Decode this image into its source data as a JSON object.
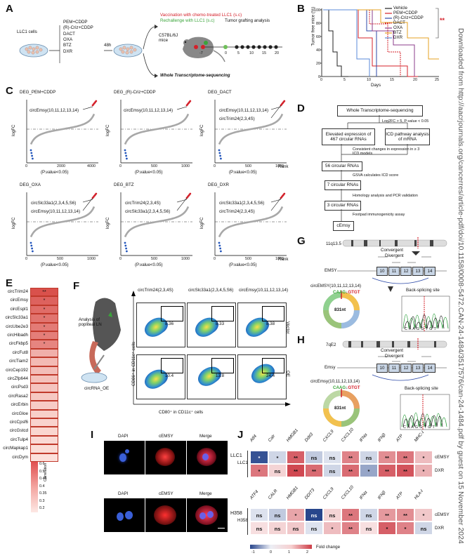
{
  "panels": {
    "A": "A",
    "B": "B",
    "C": "C",
    "D": "D",
    "E": "E",
    "F": "F",
    "G": "G",
    "H": "H",
    "I": "I",
    "J": "J"
  },
  "side_note": "Downloaded from http://aacrjournals.org/cancerres/article-pdf/doi/10.1158/0008-5472.CAN-24-1484/3517576/can-24-1484.pdf by guest on 15 November 2024",
  "colors": {
    "red": "#d4202a",
    "green": "#3aa43a",
    "blue": "#2255bb",
    "gray": "#9a9a9a"
  },
  "panelA": {
    "cells_label": "LLC1 cells",
    "drugs": [
      "PEM+CDDP",
      "(R)-Criz+CDDP",
      "DACT",
      "OXA",
      "BTZ",
      "DXR"
    ],
    "time": "48h",
    "vaccination": "Vaccination with chemo-treated LLC1 (s.c)",
    "rechallenge": "Rechallenge with LLC1 (s.c)",
    "grafting": "Tumor grafting analysis",
    "mice": "C57BL/6J mice",
    "wts": "Whole Transcriptome-sequencing",
    "timeline_ticks": [
      "-7",
      "0",
      "5",
      "10",
      "15",
      "20"
    ]
  },
  "panelB": {
    "legend": [
      "Vehicle",
      "PEM+CDDP",
      "(R)-Criz+CDDP",
      "DACT",
      "OXA",
      "BTZ",
      "DXR"
    ],
    "ylabel": "Tumor free mice (%)",
    "xlabel": "Days",
    "yticks": [
      "0",
      "20",
      "40",
      "60",
      "80",
      "100"
    ],
    "xticks": [
      "0",
      "5",
      "10",
      "15",
      "20",
      "25"
    ],
    "sig": "**"
  },
  "panelC": {
    "plots": [
      {
        "title": "DEG_PEM+CDDP",
        "labels": [
          "circEmsy(10,11,12,13,14)"
        ],
        "xticks": [
          "0",
          "2000",
          "4000"
        ]
      },
      {
        "title": "DEG_(R)-Criz+CDDP",
        "labels": [
          "circEmsy(10,11,12,13,14)"
        ],
        "xticks": [
          "0",
          "500",
          "1000"
        ]
      },
      {
        "title": "DEG_DACT",
        "labels": [
          "circEmsy(10,11,12,13,14)",
          "circTrim24(2,3,4S)"
        ],
        "xticks": [
          "0",
          "500",
          "1000"
        ]
      },
      {
        "title": "DEG_OXA",
        "labels": [
          "circSlc33a1(2,3,4,5,S6)",
          "circEmsy(10,11,12,13,14)"
        ],
        "xticks": [
          "0",
          "500",
          "1000"
        ]
      },
      {
        "title": "DEG_BTZ",
        "labels": [
          "circTrim24(2,3,4S)",
          "circSlc33a1(2,3,4,5,S6)"
        ],
        "xticks": [
          "0",
          "500",
          "1000"
        ]
      },
      {
        "title": "DEG_DXR",
        "labels": [
          "circSlc33a1(2,3,4,5,S6)",
          "circTrim24(2,3,4S)"
        ],
        "xticks": [
          "0",
          "500",
          "1000"
        ]
      }
    ],
    "ylabel": "logFC",
    "xsub": "(P.value<0.05)",
    "rank": "Rank"
  },
  "panelD": {
    "top": "Whole Transcriptome-sequencing",
    "criteria": "Log2FC > 5, P-value < 0.05",
    "left": "Elevated expression of 467 circular RNAs",
    "right": "ICD pathway analysis of mRNA",
    "note1": "Consistent changes in expression in ≥ 3 ICD models",
    "s1": "56 circular RNAs",
    "note2": "GSVA calculates ICD score",
    "s2": "7 circular RNAs",
    "note3": "Homology analysis and PCR validation",
    "s3": "3 circular RNAs",
    "note4": "Footpad immunogenicity assay",
    "s4": "cEmsy"
  },
  "panelE": {
    "rows": [
      {
        "name": "circTrim24",
        "sig": "**",
        "v": 0.6
      },
      {
        "name": "circEmsy",
        "sig": "*",
        "v": 0.55
      },
      {
        "name": "circEspl1",
        "sig": "*",
        "v": 0.52
      },
      {
        "name": "circSlc33a1",
        "sig": "*",
        "v": 0.5
      },
      {
        "name": "circUbe2e3",
        "sig": "*",
        "v": 0.48
      },
      {
        "name": "circHibadh",
        "sig": "*",
        "v": 0.47
      },
      {
        "name": "circFkbp5",
        "sig": "*",
        "v": 0.45
      },
      {
        "name": "circFut8",
        "sig": "",
        "v": 0.33
      },
      {
        "name": "circTiam2",
        "sig": "",
        "v": 0.3
      },
      {
        "name": "circCep192",
        "sig": "",
        "v": 0.29
      },
      {
        "name": "circZfp644",
        "sig": "",
        "v": 0.28
      },
      {
        "name": "circPsd3",
        "sig": "",
        "v": 0.27
      },
      {
        "name": "circRasa2",
        "sig": "",
        "v": 0.26
      },
      {
        "name": "circErbin",
        "sig": "",
        "v": 0.25
      },
      {
        "name": "circGloe",
        "sig": "",
        "v": 0.24
      },
      {
        "name": "circCpsf6",
        "sig": "",
        "v": 0.23
      },
      {
        "name": "circGstcd",
        "sig": "",
        "v": 0.22
      },
      {
        "name": "circTulp4",
        "sig": "",
        "v": 0.21
      },
      {
        "name": "circMapkap1",
        "sig": "",
        "v": 0.2
      },
      {
        "name": "circDym",
        "sig": "",
        "v": 0.19
      }
    ],
    "scale_label": "Correlation",
    "scale_ticks": [
      "0.6",
      "0.5",
      "0.45",
      "0.4",
      "0.35",
      "0.3",
      "0.2"
    ]
  },
  "panelF": {
    "analysis": "Analysis of popliteal LN",
    "oe_label": "circRNA_OE",
    "cols": [
      "circTrim24(2,3,4S)",
      "circSlc33a1(2,3,4,5,S6)",
      "circEmsy(10,11,12,13,14)"
    ],
    "vector_vals": [
      "8.36",
      "8.33",
      "8.38"
    ],
    "oe_vals": [
      "10.4",
      "13.8",
      "24.4"
    ],
    "row_labels": [
      "Vector",
      "OE"
    ],
    "ylabel": "CD86⁺ in CD11c⁺ cells",
    "xlabel": "CD80⁺ in CD11c⁺ cells"
  },
  "panelG": {
    "locus": "11q13.5",
    "convergent": "Convergent",
    "divergent": "Divergent",
    "gene": "EMSY",
    "exons": [
      "10",
      "11",
      "12",
      "13",
      "14"
    ],
    "circ": "circEMSY(10,11,12,13,14)",
    "junction": "CAAG GTGT",
    "junction_a": "CAAG",
    "junction_b": "GTGT",
    "size": "831nt",
    "bs_site": "Back-splicing site",
    "seq": "C A A G G T G T"
  },
  "panelH": {
    "locus": "7qE2",
    "convergent": "Convergent",
    "divergent": "Divergent",
    "gene": "Emsy",
    "exons": [
      "10",
      "11",
      "12",
      "13",
      "14"
    ],
    "circ": "circEmsy(10,11,12,13,14)",
    "junction_a": "CAAG",
    "junction_b": "GTGT",
    "size": "831nt",
    "bs_site": "Back-splicing site",
    "seq": "C A A G G T G T"
  },
  "panelI": {
    "headers": [
      "DAPI",
      "cEMSY",
      "Merge"
    ],
    "rows": [
      "LLC1",
      "H358"
    ]
  },
  "panelJ": {
    "top_cols": [
      "Atf4",
      "Calr",
      "HMGB1",
      "Ddit3",
      "CXCL9",
      "CXCL10",
      "IFNα",
      "IFNβ",
      "ATP",
      "MHC-I"
    ],
    "bottom_cols": [
      "ATF4",
      "CALR",
      "HMGB1",
      "DDIT3",
      "CXCL9",
      "CXCL10",
      "IFNα",
      "IFNβ",
      "ATP",
      "HLA-I"
    ],
    "top_group": "LLC1",
    "bottom_group": "H358",
    "row_labels": [
      "cEMSY",
      "DXR"
    ],
    "top_cells": [
      [
        "*",
        "*",
        "**",
        "ns",
        "ns",
        "**",
        "ns",
        "**",
        "**",
        "*"
      ],
      [
        "*",
        "ns",
        "**",
        "**",
        "ns",
        "**",
        "*",
        "**",
        "**",
        "*"
      ]
    ],
    "top_vals": [
      [
        -1.3,
        -0.2,
        1.2,
        -0.3,
        -0.1,
        0.9,
        -0.2,
        0.8,
        1.0,
        0.4
      ],
      [
        1.0,
        0.2,
        1.4,
        1.1,
        -0.2,
        1.1,
        -0.6,
        1.2,
        1.3,
        0.5
      ]
    ],
    "bottom_cells": [
      [
        "ns",
        "ns",
        "*",
        "ns",
        "ns",
        "**",
        "ns",
        "**",
        "**",
        "*"
      ],
      [
        "ns",
        "ns",
        "ns",
        "ns",
        "*",
        "**",
        "ns",
        "*",
        "*",
        "ns"
      ]
    ],
    "bottom_vals": [
      [
        -0.1,
        -0.3,
        0.6,
        -1.4,
        0.2,
        1.0,
        -0.2,
        0.7,
        0.8,
        0.3
      ],
      [
        0.1,
        0.2,
        0.3,
        -0.1,
        0.4,
        0.9,
        0.1,
        1.2,
        0.9,
        -0.2
      ]
    ],
    "scale_ticks": [
      "-1",
      "0",
      "1",
      "2"
    ],
    "scale_label": "Fold change"
  }
}
